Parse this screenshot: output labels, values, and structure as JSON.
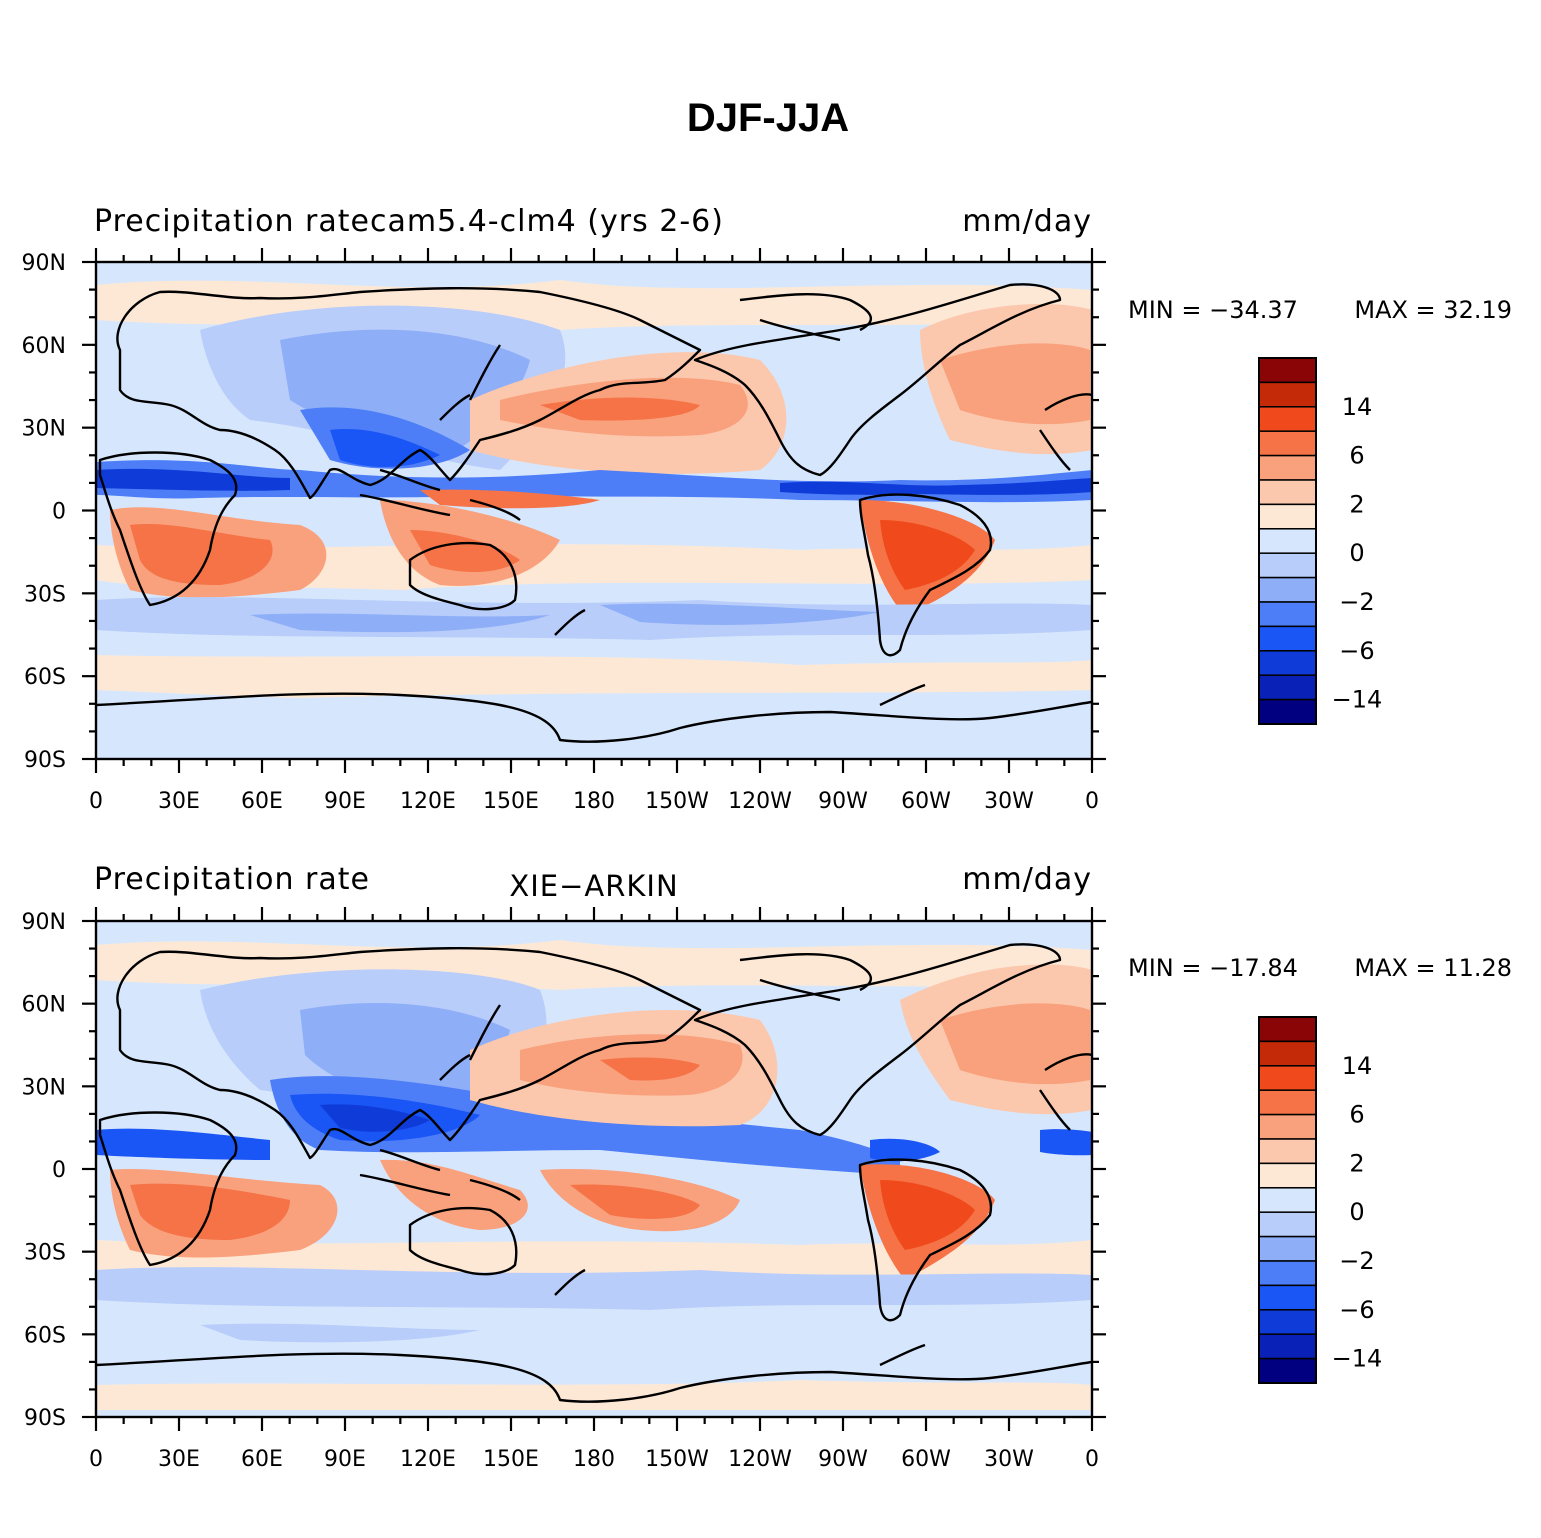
{
  "title": "DJF-JJA",
  "colors": {
    "levels": [
      "#000080",
      "#0a21b8",
      "#0f3bd9",
      "#1a55f5",
      "#4d7ef7",
      "#8eaef8",
      "#b9cdfa",
      "#d6e7fd",
      "#fde8d6",
      "#fbc8ae",
      "#f9a07c",
      "#f57346",
      "#f04a1c",
      "#c42a08",
      "#8a0606"
    ],
    "coast": "#000000"
  },
  "panels": [
    {
      "left_label": "Precipitation ratecam5.4-clm4 (yrs 2-6)",
      "center_label": "",
      "right_label": "mm/day",
      "min_label": "MIN = −34.37",
      "max_label": "MAX = 32.19",
      "min": -34.37,
      "max": 32.19
    },
    {
      "left_label": "Precipitation rate",
      "center_label": "XIE−ARKIN",
      "right_label": "mm/day",
      "min_label": "MIN = −17.84",
      "max_label": "MAX = 11.28",
      "min": -17.84,
      "max": 11.28
    }
  ],
  "lat_ticks": [
    "90N",
    "60N",
    "30N",
    "0",
    "30S",
    "60S",
    "90S"
  ],
  "lon_ticks": [
    "0",
    "30E",
    "60E",
    "90E",
    "120E",
    "150E",
    "180",
    "150W",
    "120W",
    "90W",
    "60W",
    "30W",
    "0"
  ],
  "colorbar_labels": [
    "14",
    "6",
    "2",
    "0",
    "−2",
    "−6",
    "−14"
  ]
}
